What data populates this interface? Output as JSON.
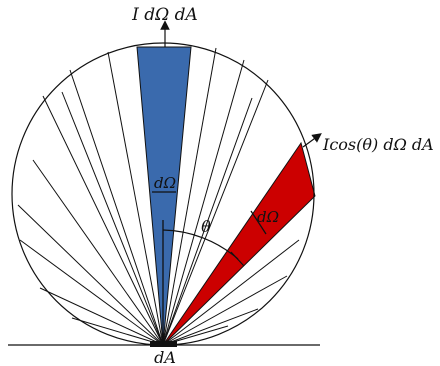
{
  "labels": {
    "top": "I dΩ dA",
    "right": "Icos(θ) dΩ dA",
    "omega_blue": "dΩ",
    "omega_red": "dΩ",
    "theta": "θ",
    "bottom": "dA"
  },
  "colors": {
    "blue_wedge": "#3a6aad",
    "red_wedge": "#cc0000",
    "lines": "#111111",
    "background": "#ffffff"
  }
}
